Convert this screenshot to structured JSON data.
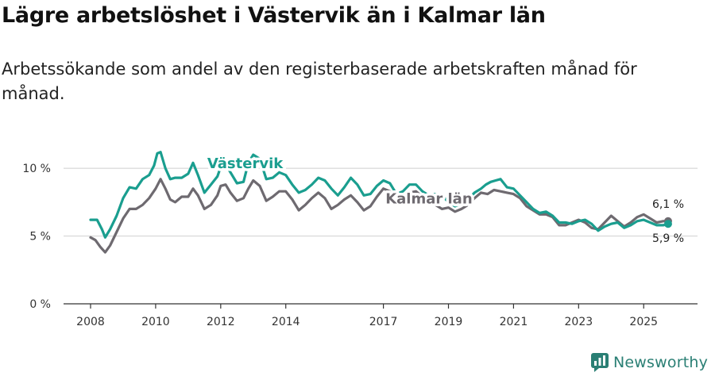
{
  "header": {
    "title": "Lägre arbetslöshet i Västervik än i Kalmar län",
    "subtitle": "Arbetssökande som andel av den registerbaserade arbetskraften månad för månad."
  },
  "brand": {
    "name": "Newsworthy",
    "icon": "newsworthy-logo-icon",
    "color": "#2a7f74"
  },
  "colors": {
    "vastervik": "#1a9e8f",
    "kalmar": "#6e6a70",
    "grid": "#dcdcdc",
    "axis": "#333333"
  },
  "chart_data": {
    "type": "line",
    "title": "Lägre arbetslöshet i Västervik än i Kalmar län",
    "subtitle": "Arbetssökande som andel av den registerbaserade arbetskraften månad för månad.",
    "xlabel": "",
    "ylabel": "",
    "xlim": [
      2008.0,
      2025.8
    ],
    "ylim": [
      0,
      12
    ],
    "grid": true,
    "y_ticks": [
      {
        "value": 0,
        "label": "0 %"
      },
      {
        "value": 5,
        "label": "5 %"
      },
      {
        "value": 10,
        "label": "10 %"
      }
    ],
    "x_ticks": [
      {
        "value": 2008,
        "label": "2008"
      },
      {
        "value": 2010,
        "label": "2010"
      },
      {
        "value": 2012,
        "label": "2012"
      },
      {
        "value": 2014,
        "label": "2014"
      },
      {
        "value": 2017,
        "label": "2017"
      },
      {
        "value": 2019,
        "label": "2019"
      },
      {
        "value": 2021,
        "label": "2021"
      },
      {
        "value": 2023,
        "label": "2023"
      },
      {
        "value": 2025,
        "label": "2025"
      }
    ],
    "series": [
      {
        "name": "Västervik",
        "color": "#1a9e8f",
        "points": [
          [
            2008.0,
            6.2
          ],
          [
            2008.2,
            6.2
          ],
          [
            2008.35,
            5.5
          ],
          [
            2008.45,
            4.9
          ],
          [
            2008.6,
            5.5
          ],
          [
            2008.8,
            6.5
          ],
          [
            2009.0,
            7.8
          ],
          [
            2009.2,
            8.6
          ],
          [
            2009.4,
            8.5
          ],
          [
            2009.6,
            9.2
          ],
          [
            2009.8,
            9.5
          ],
          [
            2009.95,
            10.2
          ],
          [
            2010.05,
            11.1
          ],
          [
            2010.15,
            11.2
          ],
          [
            2010.3,
            10.0
          ],
          [
            2010.45,
            9.2
          ],
          [
            2010.6,
            9.3
          ],
          [
            2010.8,
            9.3
          ],
          [
            2011.0,
            9.6
          ],
          [
            2011.15,
            10.4
          ],
          [
            2011.3,
            9.5
          ],
          [
            2011.5,
            8.2
          ],
          [
            2011.7,
            8.8
          ],
          [
            2011.9,
            9.4
          ],
          [
            2012.0,
            10.1
          ],
          [
            2012.15,
            10.3
          ],
          [
            2012.3,
            9.7
          ],
          [
            2012.5,
            8.9
          ],
          [
            2012.7,
            9.0
          ],
          [
            2012.85,
            10.4
          ],
          [
            2013.0,
            11.0
          ],
          [
            2013.2,
            10.7
          ],
          [
            2013.4,
            9.2
          ],
          [
            2013.6,
            9.3
          ],
          [
            2013.8,
            9.7
          ],
          [
            2014.0,
            9.5
          ],
          [
            2014.2,
            8.8
          ],
          [
            2014.4,
            8.2
          ],
          [
            2014.6,
            8.4
          ],
          [
            2014.8,
            8.8
          ],
          [
            2015.0,
            9.3
          ],
          [
            2015.2,
            9.1
          ],
          [
            2015.4,
            8.5
          ],
          [
            2015.6,
            8.0
          ],
          [
            2015.8,
            8.6
          ],
          [
            2016.0,
            9.3
          ],
          [
            2016.2,
            8.8
          ],
          [
            2016.4,
            8.0
          ],
          [
            2016.6,
            8.1
          ],
          [
            2016.8,
            8.7
          ],
          [
            2017.0,
            9.1
          ],
          [
            2017.2,
            8.9
          ],
          [
            2017.4,
            8.1
          ],
          [
            2017.6,
            8.3
          ],
          [
            2017.8,
            8.8
          ],
          [
            2018.0,
            8.8
          ],
          [
            2018.2,
            8.3
          ],
          [
            2018.4,
            8.0
          ],
          [
            2018.6,
            8.1
          ],
          [
            2018.8,
            8.0
          ],
          [
            2019.0,
            7.5
          ],
          [
            2019.2,
            7.2
          ],
          [
            2019.4,
            7.4
          ],
          [
            2019.6,
            7.7
          ],
          [
            2019.8,
            8.2
          ],
          [
            2020.0,
            8.5
          ],
          [
            2020.15,
            8.8
          ],
          [
            2020.3,
            9.0
          ],
          [
            2020.45,
            9.1
          ],
          [
            2020.6,
            9.2
          ],
          [
            2020.8,
            8.6
          ],
          [
            2021.0,
            8.5
          ],
          [
            2021.2,
            8.0
          ],
          [
            2021.4,
            7.5
          ],
          [
            2021.6,
            7.0
          ],
          [
            2021.8,
            6.7
          ],
          [
            2022.0,
            6.8
          ],
          [
            2022.2,
            6.5
          ],
          [
            2022.4,
            6.0
          ],
          [
            2022.6,
            6.0
          ],
          [
            2022.8,
            5.9
          ],
          [
            2023.0,
            6.1
          ],
          [
            2023.2,
            6.2
          ],
          [
            2023.4,
            5.9
          ],
          [
            2023.6,
            5.4
          ],
          [
            2023.8,
            5.7
          ],
          [
            2024.0,
            5.9
          ],
          [
            2024.2,
            6.0
          ],
          [
            2024.4,
            5.6
          ],
          [
            2024.6,
            5.8
          ],
          [
            2024.8,
            6.1
          ],
          [
            2025.0,
            6.2
          ],
          [
            2025.2,
            6.0
          ],
          [
            2025.4,
            5.8
          ],
          [
            2025.6,
            5.8
          ],
          [
            2025.75,
            5.9
          ]
        ],
        "end_label": "5,9 %"
      },
      {
        "name": "Kalmar län",
        "color": "#6e6a70",
        "points": [
          [
            2008.0,
            4.9
          ],
          [
            2008.15,
            4.7
          ],
          [
            2008.3,
            4.2
          ],
          [
            2008.45,
            3.8
          ],
          [
            2008.6,
            4.3
          ],
          [
            2008.8,
            5.3
          ],
          [
            2009.0,
            6.3
          ],
          [
            2009.2,
            7.0
          ],
          [
            2009.4,
            7.0
          ],
          [
            2009.6,
            7.3
          ],
          [
            2009.8,
            7.8
          ],
          [
            2010.0,
            8.5
          ],
          [
            2010.15,
            9.2
          ],
          [
            2010.3,
            8.5
          ],
          [
            2010.45,
            7.7
          ],
          [
            2010.6,
            7.5
          ],
          [
            2010.8,
            7.9
          ],
          [
            2011.0,
            7.9
          ],
          [
            2011.15,
            8.5
          ],
          [
            2011.3,
            8.0
          ],
          [
            2011.5,
            7.0
          ],
          [
            2011.7,
            7.3
          ],
          [
            2011.9,
            8.0
          ],
          [
            2012.0,
            8.7
          ],
          [
            2012.15,
            8.8
          ],
          [
            2012.3,
            8.2
          ],
          [
            2012.5,
            7.6
          ],
          [
            2012.7,
            7.8
          ],
          [
            2012.85,
            8.5
          ],
          [
            2013.0,
            9.1
          ],
          [
            2013.2,
            8.7
          ],
          [
            2013.4,
            7.6
          ],
          [
            2013.6,
            7.9
          ],
          [
            2013.8,
            8.3
          ],
          [
            2014.0,
            8.3
          ],
          [
            2014.2,
            7.7
          ],
          [
            2014.4,
            6.9
          ],
          [
            2014.6,
            7.3
          ],
          [
            2014.8,
            7.8
          ],
          [
            2015.0,
            8.2
          ],
          [
            2015.2,
            7.8
          ],
          [
            2015.4,
            7.0
          ],
          [
            2015.6,
            7.3
          ],
          [
            2015.8,
            7.7
          ],
          [
            2016.0,
            8.0
          ],
          [
            2016.2,
            7.5
          ],
          [
            2016.4,
            6.9
          ],
          [
            2016.6,
            7.2
          ],
          [
            2016.8,
            7.9
          ],
          [
            2017.0,
            8.5
          ],
          [
            2017.2,
            8.3
          ],
          [
            2017.4,
            7.6
          ],
          [
            2017.6,
            7.8
          ],
          [
            2017.8,
            8.2
          ],
          [
            2018.0,
            8.3
          ],
          [
            2018.2,
            7.9
          ],
          [
            2018.4,
            7.5
          ],
          [
            2018.6,
            7.3
          ],
          [
            2018.8,
            7.0
          ],
          [
            2019.0,
            7.1
          ],
          [
            2019.2,
            6.8
          ],
          [
            2019.4,
            7.0
          ],
          [
            2019.6,
            7.3
          ],
          [
            2019.8,
            7.8
          ],
          [
            2020.0,
            8.2
          ],
          [
            2020.2,
            8.1
          ],
          [
            2020.4,
            8.4
          ],
          [
            2020.6,
            8.3
          ],
          [
            2020.8,
            8.2
          ],
          [
            2021.0,
            8.1
          ],
          [
            2021.2,
            7.8
          ],
          [
            2021.4,
            7.2
          ],
          [
            2021.6,
            6.9
          ],
          [
            2021.8,
            6.6
          ],
          [
            2022.0,
            6.6
          ],
          [
            2022.2,
            6.4
          ],
          [
            2022.4,
            5.8
          ],
          [
            2022.6,
            5.8
          ],
          [
            2022.8,
            6.0
          ],
          [
            2023.0,
            6.2
          ],
          [
            2023.2,
            6.0
          ],
          [
            2023.4,
            5.6
          ],
          [
            2023.6,
            5.5
          ],
          [
            2023.8,
            6.0
          ],
          [
            2024.0,
            6.5
          ],
          [
            2024.2,
            6.1
          ],
          [
            2024.4,
            5.7
          ],
          [
            2024.6,
            6.0
          ],
          [
            2024.8,
            6.4
          ],
          [
            2025.0,
            6.6
          ],
          [
            2025.2,
            6.3
          ],
          [
            2025.4,
            6.0
          ],
          [
            2025.6,
            6.1
          ],
          [
            2025.75,
            6.1
          ]
        ],
        "end_label": "6,1 %"
      }
    ],
    "annotations": [
      {
        "text": "Västervik",
        "series": "Västervik",
        "x": 2012.75,
        "y": 10.0
      },
      {
        "text": "Kalmar län",
        "series": "Kalmar län",
        "x": 2018.4,
        "y": 7.4
      }
    ]
  }
}
